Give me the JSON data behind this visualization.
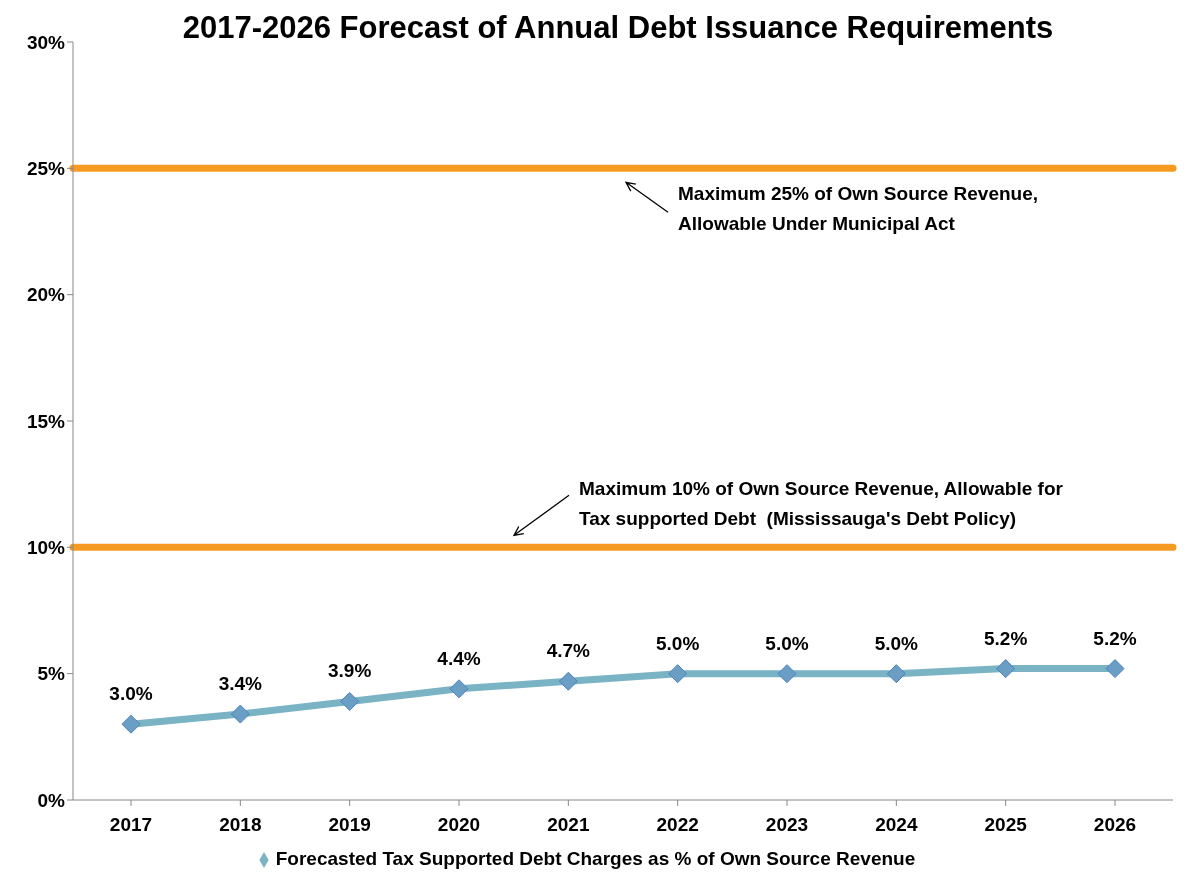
{
  "chart_data": {
    "type": "line",
    "title": "2017-2026 Forecast of Annual Debt Issuance Requirements",
    "categories": [
      "2017",
      "2018",
      "2019",
      "2020",
      "2021",
      "2022",
      "2023",
      "2024",
      "2025",
      "2026"
    ],
    "series": [
      {
        "name": "Forecasted Tax Supported Debt Charges as % of Own Source Revenue",
        "color": "#7ab3c4",
        "values": [
          3.0,
          3.4,
          3.9,
          4.4,
          4.7,
          5.0,
          5.0,
          5.0,
          5.2,
          5.2
        ],
        "value_labels": [
          "3.0%",
          "3.4%",
          "3.9%",
          "4.4%",
          "4.7%",
          "5.0%",
          "5.0%",
          "5.0%",
          "5.2%",
          "5.2%"
        ]
      }
    ],
    "ylim": [
      0,
      30
    ],
    "yticks": [
      {
        "value": 0,
        "label": "0%"
      },
      {
        "value": 5,
        "label": "5%"
      },
      {
        "value": 10,
        "label": "10%"
      },
      {
        "value": 15,
        "label": "15%"
      },
      {
        "value": 20,
        "label": "20%"
      },
      {
        "value": 25,
        "label": "25%"
      },
      {
        "value": 30,
        "label": "30%"
      }
    ],
    "ref_lines": [
      {
        "axis": "y",
        "value": 25,
        "label": "Maximum 25% of Own Source Revenue, Allowable Under Municipal Act",
        "color": "#f79a22"
      },
      {
        "axis": "y",
        "value": 10,
        "label": "Maximum 10% of Own Source Revenue, Allowable for Tax supported Debt  (Mississauga's Debt Policy)",
        "color": "#f79a22"
      }
    ],
    "marker": "diamond",
    "line_style": "solid",
    "grid": false,
    "legend": "bottom"
  }
}
